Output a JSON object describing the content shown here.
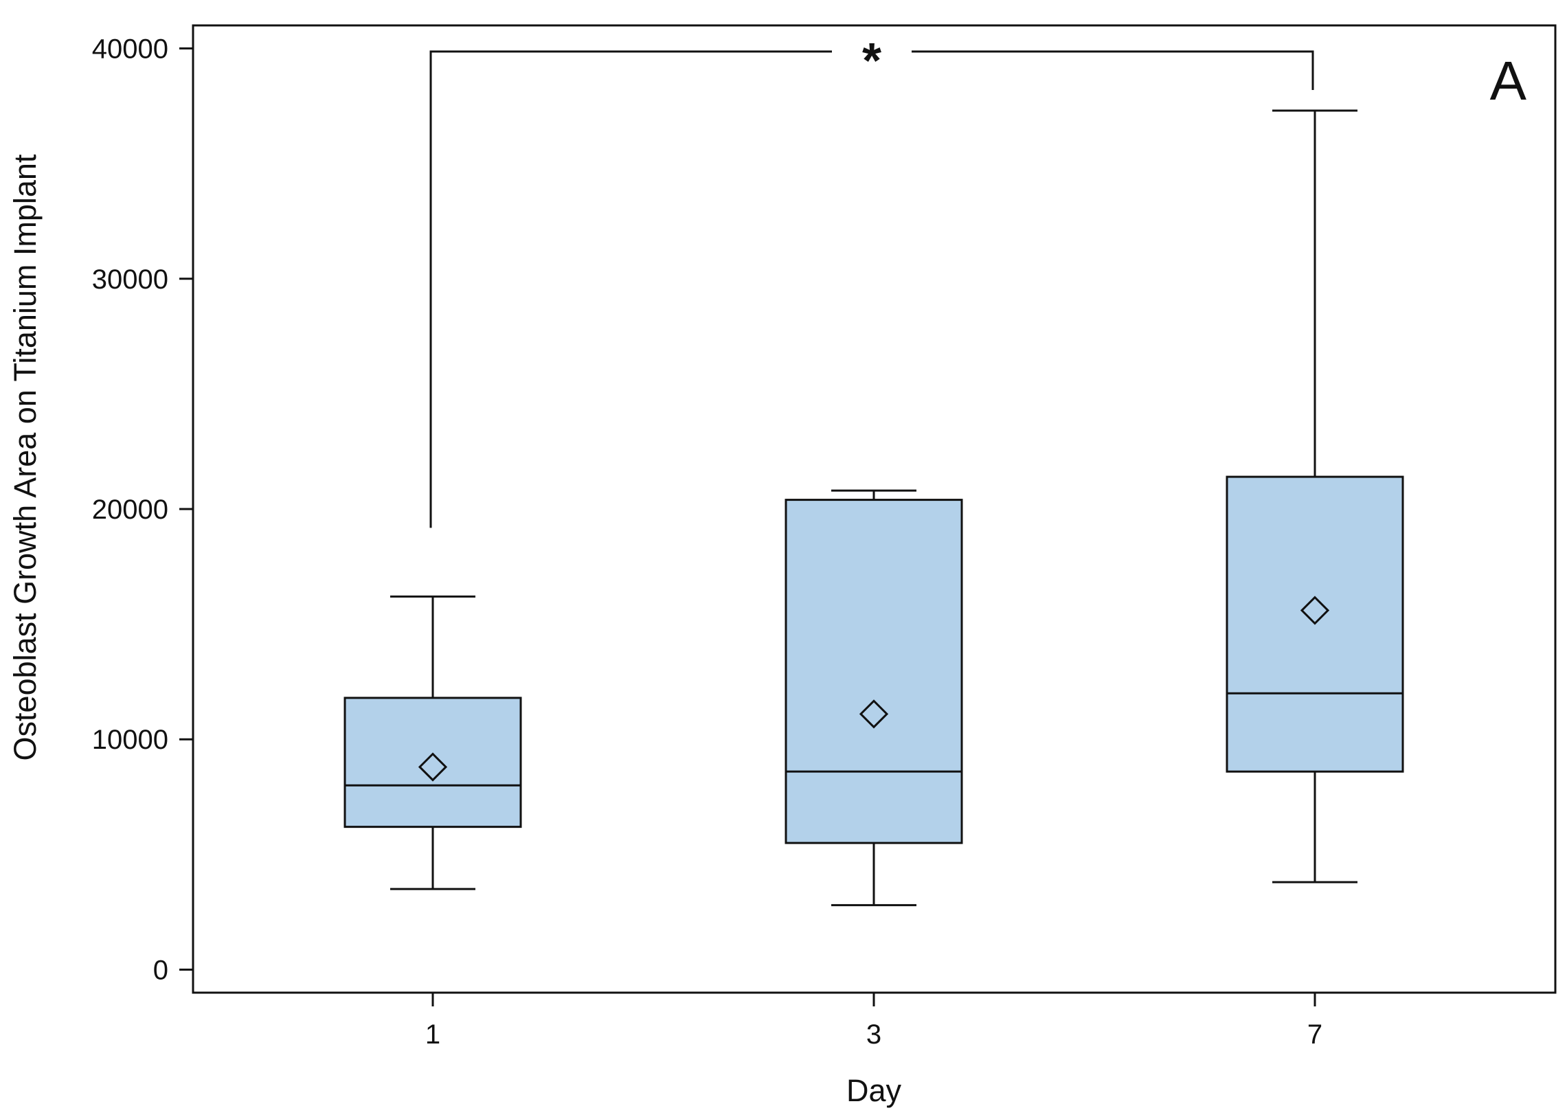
{
  "chart_data": {
    "type": "box",
    "panel_label": "A",
    "xlabel": "Day",
    "ylabel": "Osteoblast Growth Area on Titanium Implant",
    "ylim": [
      -1000,
      41000
    ],
    "yticks": [
      0,
      10000,
      20000,
      30000,
      40000
    ],
    "ytick_labels": [
      "0",
      "10000",
      "20000",
      "30000",
      "40000"
    ],
    "categories": [
      "1",
      "3",
      "7"
    ],
    "boxes": [
      {
        "category": "1",
        "whisker_low": 3500,
        "q1": 6200,
        "median": 8000,
        "q3": 11800,
        "whisker_high": 16200,
        "mean": 8800
      },
      {
        "category": "3",
        "whisker_low": 2800,
        "q1": 5500,
        "median": 8600,
        "q3": 20400,
        "whisker_high": 20800,
        "mean": 11100
      },
      {
        "category": "7",
        "whisker_low": 3800,
        "q1": 8600,
        "median": 12000,
        "q3": 21400,
        "whisker_high": 37300,
        "mean": 15600
      }
    ],
    "significance": {
      "from": "1",
      "to": "7",
      "label": "*"
    },
    "colors": {
      "box_fill": "#b3d1ea",
      "stroke": "#111111"
    },
    "grid": false
  }
}
